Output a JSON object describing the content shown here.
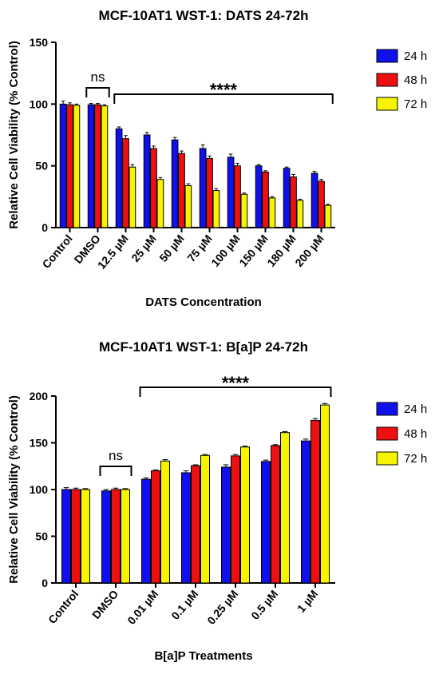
{
  "chart_data": [
    {
      "type": "bar",
      "title": "MCF-10AT1 WST-1: DATS 24-72h",
      "xlabel": "DATS Concentration",
      "ylabel": "Relative Cell Viability (% Control)",
      "ylim": [
        0,
        150
      ],
      "yticks": [
        "0",
        "50",
        "100",
        "150"
      ],
      "categories": [
        "Control",
        "DMSO",
        "12.5 µM",
        "25 µM",
        "50 µM",
        "75 µM",
        "100 µM",
        "150 µM",
        "180 µM",
        "200 µM"
      ],
      "legend_position": "right",
      "series": [
        {
          "name": "24 h",
          "color": "#1010ee",
          "values": [
            100,
            99.5,
            80,
            75,
            71,
            64,
            57,
            50,
            48,
            44
          ],
          "errors": [
            2.5,
            1,
            1.5,
            2,
            2,
            3,
            2.5,
            1,
            1,
            1.5
          ]
        },
        {
          "name": "48 h",
          "color": "#ee1010",
          "values": [
            99.5,
            99.5,
            72,
            64,
            60,
            56,
            50,
            45,
            41,
            37.5
          ],
          "errors": [
            1.5,
            1,
            2.5,
            2,
            2,
            2,
            2,
            1,
            2,
            1.5
          ]
        },
        {
          "name": "72 h",
          "color": "#f5f500",
          "values": [
            99,
            98.5,
            49,
            39,
            34,
            30,
            27,
            24,
            22,
            18
          ],
          "errors": [
            1,
            1,
            2,
            1.5,
            1.5,
            1.5,
            1,
            1,
            1,
            1
          ]
        }
      ],
      "annotations": [
        {
          "text": "ns",
          "from_category": 1,
          "to_category": 1
        },
        {
          "text": "****",
          "from_category": 2,
          "to_category": 9
        }
      ]
    },
    {
      "type": "bar",
      "title": "MCF-10AT1 WST-1: B[a]P 24-72h",
      "xlabel": "B[a]P Treatments",
      "ylabel": "Relative Cell Viability (% Control)",
      "ylim": [
        0,
        200
      ],
      "yticks": [
        "0",
        "50",
        "100",
        "150",
        "200"
      ],
      "categories": [
        "Control",
        "DMSO",
        "0.01 µM",
        "0.1 µM",
        "0.25 µM",
        "0.5 µM",
        "1 µM"
      ],
      "legend_position": "right",
      "series": [
        {
          "name": "24 h",
          "color": "#1010ee",
          "values": [
            100,
            98.5,
            111,
            118,
            124,
            130,
            152
          ],
          "errors": [
            2,
            1.5,
            1.5,
            2,
            2.5,
            1.5,
            2
          ]
        },
        {
          "name": "48 h",
          "color": "#ee1010",
          "values": [
            100,
            100,
            120,
            125.5,
            136,
            147,
            174
          ],
          "errors": [
            1.5,
            1.5,
            1,
            1,
            1.5,
            1,
            2
          ]
        },
        {
          "name": "72 h",
          "color": "#f5f500",
          "values": [
            100,
            100,
            130.5,
            136.5,
            145.5,
            161,
            190.5
          ],
          "errors": [
            1,
            1,
            1.5,
            1,
            1,
            1,
            1.5
          ]
        }
      ],
      "annotations": [
        {
          "text": "ns",
          "from_category": 1,
          "to_category": 1
        },
        {
          "text": "****",
          "from_category": 2,
          "to_category": 6
        }
      ]
    }
  ]
}
